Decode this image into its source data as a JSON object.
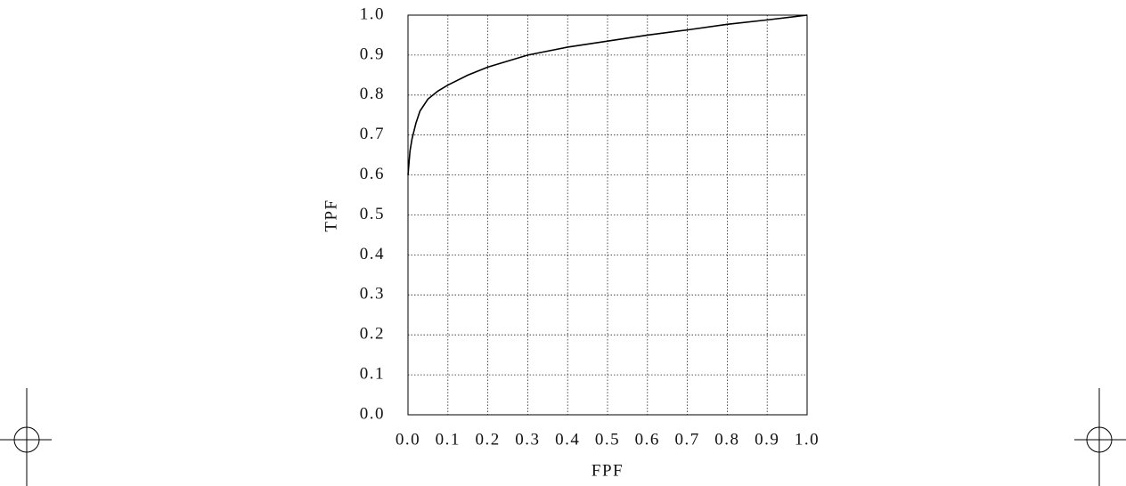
{
  "chart_data": {
    "type": "line",
    "xlabel": "FPF",
    "ylabel": "TPF",
    "x": [
      0,
      0.005,
      0.01,
      0.02,
      0.03,
      0.05,
      0.075,
      0.1,
      0.15,
      0.2,
      0.3,
      0.4,
      0.5,
      0.6,
      0.7,
      0.8,
      0.9,
      1
    ],
    "series": [
      {
        "color": "#000000",
        "values": [
          0.6,
          0.66,
          0.69,
          0.73,
          0.76,
          0.79,
          0.81,
          0.825,
          0.85,
          0.87,
          0.9,
          0.92,
          0.935,
          0.95,
          0.963,
          0.977,
          0.988,
          1
        ]
      }
    ],
    "xlim": [
      0,
      1
    ],
    "ylim": [
      0,
      1
    ],
    "xticks": [
      {
        "value": 0,
        "label": "0.0"
      },
      0.1,
      0.2,
      0.3,
      0.4,
      0.5,
      0.6,
      0.7,
      0.8,
      0.9,
      {
        "value": 1,
        "label": "1.0"
      }
    ],
    "yticks": [
      {
        "value": 0,
        "label": "0.0"
      },
      0.1,
      0.2,
      0.3,
      0.4,
      0.5,
      0.6,
      0.7,
      0.8,
      0.9,
      {
        "value": 1,
        "label": "1.0"
      }
    ],
    "grid": true
  }
}
